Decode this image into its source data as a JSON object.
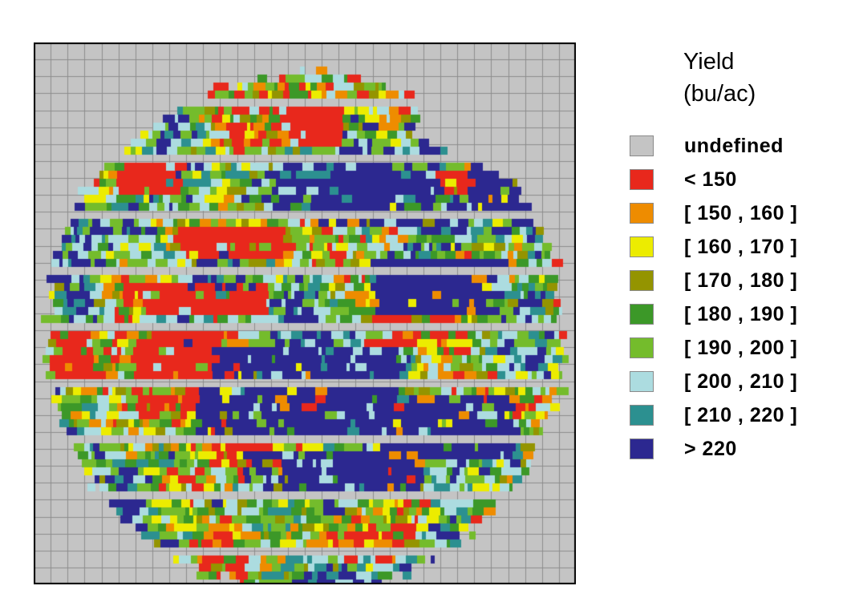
{
  "legend": {
    "title_line1": "Yield",
    "title_line2": "(bu/ac)",
    "items": [
      {
        "label": "undefined",
        "color": "#c4c4c4"
      },
      {
        "label": "< 150",
        "color": "#e8281c"
      },
      {
        "label": "[ 150 , 160 ]",
        "color": "#ee8c00"
      },
      {
        "label": "[ 160 , 170 ]",
        "color": "#ecec00"
      },
      {
        "label": "[ 170 , 180 ]",
        "color": "#949400"
      },
      {
        "label": "[ 180 , 190 ]",
        "color": "#3c9828"
      },
      {
        "label": "[ 190 , 200 ]",
        "color": "#74bc2c"
      },
      {
        "label": "[ 200 , 210 ]",
        "color": "#acdce0"
      },
      {
        "label": "[ 210 , 220 ]",
        "color": "#2c9090"
      },
      {
        "label": "> 220",
        "color": "#2c2890"
      }
    ]
  },
  "map": {
    "background_color": "#c4c4c4",
    "grid_line_color": "#8c8c8c",
    "frame_color": "#000000",
    "grid_divisions": 32
  }
}
